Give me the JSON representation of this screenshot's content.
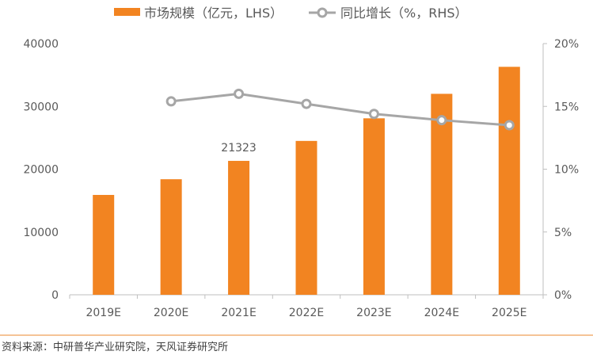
{
  "chart_data": {
    "type": "bar",
    "categories": [
      "2019E",
      "2020E",
      "2021E",
      "2022E",
      "2023E",
      "2024E",
      "2025E"
    ],
    "series": [
      {
        "name": "市场规模（亿元，LHS）",
        "type": "bar",
        "axis": "left",
        "color": "#F28421",
        "values": [
          15900,
          18400,
          21323,
          24500,
          28100,
          32000,
          36300
        ]
      },
      {
        "name": "同比增长（%，RHS）",
        "type": "line",
        "axis": "right",
        "color": "#A6A6A6",
        "values": [
          null,
          15.4,
          16.0,
          15.2,
          14.4,
          13.9,
          13.5
        ]
      }
    ],
    "data_labels": [
      {
        "category": "2021E",
        "text": "21323"
      }
    ],
    "y_left": {
      "range": [
        0,
        40000
      ],
      "ticks": [
        "0",
        "10000",
        "20000",
        "30000",
        "40000"
      ]
    },
    "y_right": {
      "range": [
        0,
        20
      ],
      "ticks": [
        "0%",
        "5%",
        "10%",
        "15%",
        "20%"
      ]
    },
    "legend_placement": "top",
    "grid": false
  },
  "source": "资料来源：中研普华产业研究院，天风证券研究所",
  "colors": {
    "accent": "#F28421",
    "line": "#A6A6A6",
    "footer_rule": "#F2B173"
  }
}
